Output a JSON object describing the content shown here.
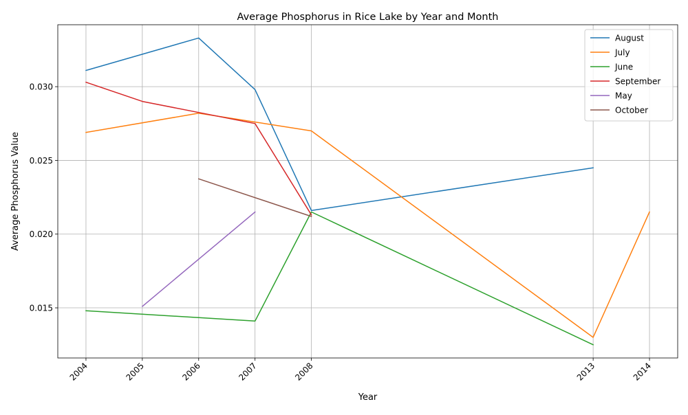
{
  "chart_data": {
    "type": "line",
    "title": "Average Phosphorus in Rice Lake by Year and Month",
    "xlabel": "Year",
    "ylabel": "Average Phosphorus Value",
    "xlim": [
      2003.5,
      2014.5
    ],
    "ylim": [
      0.0116,
      0.0342
    ],
    "x_ticks": [
      2004,
      2005,
      2006,
      2007,
      2008,
      2013,
      2014
    ],
    "y_ticks": [
      0.015,
      0.02,
      0.025,
      0.03
    ],
    "y_tick_labels": [
      "0.015",
      "0.020",
      "0.025",
      "0.030"
    ],
    "grid": true,
    "legend_position": "top-right",
    "series": [
      {
        "name": "August",
        "color": "#1f77b4",
        "x": [
          2004,
          2006,
          2007,
          2008,
          2013
        ],
        "y": [
          0.0311,
          0.0333,
          0.0298,
          0.0216,
          0.0245
        ]
      },
      {
        "name": "July",
        "color": "#ff7f0e",
        "x": [
          2004,
          2006,
          2007,
          2008,
          2013,
          2014
        ],
        "y": [
          0.0269,
          0.0282,
          0.0276,
          0.027,
          0.013,
          0.0215
        ]
      },
      {
        "name": "June",
        "color": "#2ca02c",
        "x": [
          2004,
          2007,
          2008,
          2013
        ],
        "y": [
          0.0148,
          0.0141,
          0.0215,
          0.0125
        ]
      },
      {
        "name": "September",
        "color": "#d62728",
        "x": [
          2004,
          2005,
          2007,
          2008
        ],
        "y": [
          0.0303,
          0.029,
          0.0275,
          0.0213
        ]
      },
      {
        "name": "May",
        "color": "#9467bd",
        "x": [
          2005,
          2007
        ],
        "y": [
          0.0151,
          0.0215
        ]
      },
      {
        "name": "October",
        "color": "#8c564b",
        "x": [
          2006,
          2008
        ],
        "y": [
          0.02375,
          0.0212
        ]
      }
    ]
  }
}
